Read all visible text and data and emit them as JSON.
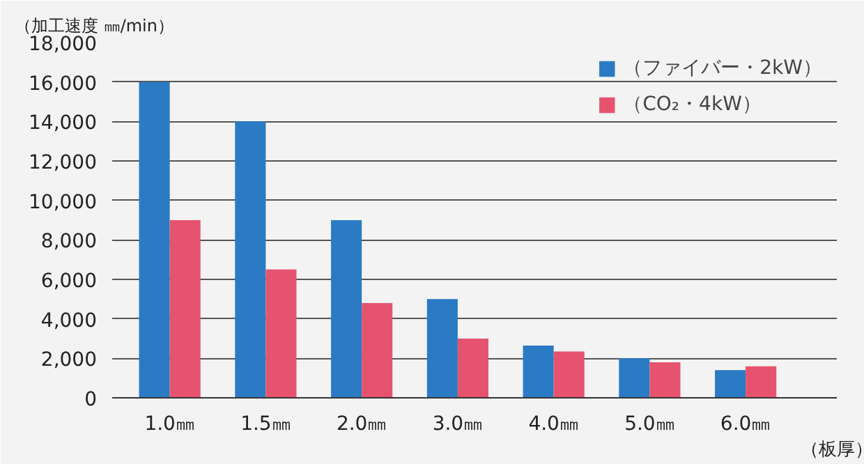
{
  "chart_data": {
    "type": "bar",
    "ylabel": "（加工速度 ㎜/min）",
    "xlabel": "（板厚）",
    "categories": [
      "1.0㎜",
      "1.5㎜",
      "2.0㎜",
      "3.0㎜",
      "4.0㎜",
      "5.0㎜",
      "6.0㎜"
    ],
    "series": [
      {
        "name": "（ファイバー・2kW）",
        "color": "#2a7bc4",
        "values": [
          16000,
          14000,
          9000,
          5000,
          2650,
          2000,
          1400
        ]
      },
      {
        "name": "（CO₂・4kW）",
        "color": "#e6536e",
        "values": [
          9000,
          6500,
          4800,
          3000,
          2350,
          1800,
          1600
        ]
      }
    ],
    "ylim": [
      0,
      18000
    ],
    "yticks": [
      {
        "value": 0,
        "label": "0"
      },
      {
        "value": 2000,
        "label": "2,000"
      },
      {
        "value": 4000,
        "label": "4,000"
      },
      {
        "value": 6000,
        "label": "6,000"
      },
      {
        "value": 8000,
        "label": "8,000"
      },
      {
        "value": 10000,
        "label": "10,000"
      },
      {
        "value": 12000,
        "label": "12,000"
      },
      {
        "value": 14000,
        "label": "14,000"
      },
      {
        "value": 16000,
        "label": "16,000"
      },
      {
        "value": 18000,
        "label": "18,000"
      }
    ],
    "grid": "y",
    "legend": "top right"
  }
}
